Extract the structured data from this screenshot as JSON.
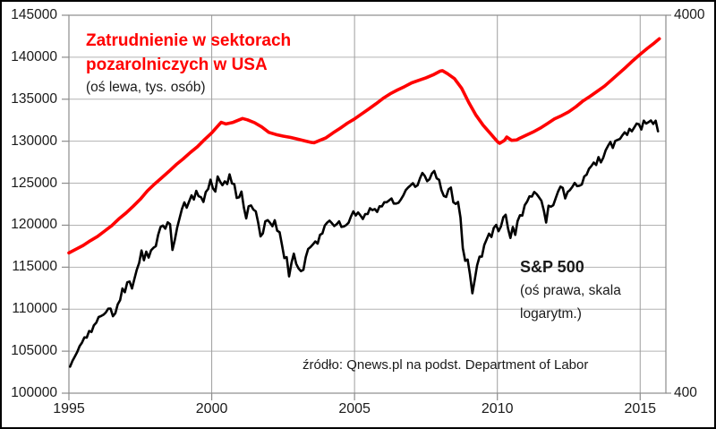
{
  "labels": {
    "series1_title_lines": [
      "Zatrudnienie w sektorach",
      "pozarolniczych w USA"
    ],
    "series1_note": "(oś lewa, tys. osób)",
    "series2_title": "S&P 500",
    "series2_note_lines": [
      "(oś prawa, skala",
      "logarytm.)"
    ],
    "source": "źródło: Qnews.pl na podst. Department of Labor"
  },
  "colors": {
    "series1": "#ff0000",
    "series2": "#000000",
    "grid": "#b3b3b3",
    "axis": "#8c8c8c",
    "text": "#1a1a1a",
    "frame_border": "#000000",
    "background": "#ffffff"
  },
  "chart_data": {
    "type": "line",
    "title": "",
    "x_axis": {
      "min": 1995,
      "max": 2015.9,
      "ticks": [
        1995,
        2000,
        2005,
        2010,
        2015
      ],
      "labels": [
        "1995",
        "2000",
        "2005",
        "2010",
        "2015"
      ],
      "grid": true
    },
    "left_axis": {
      "min": 100000,
      "max": 145000,
      "step": 5000,
      "grid": true,
      "labels": [
        "145000",
        "140000",
        "135000",
        "130000",
        "125000",
        "120000",
        "115000",
        "110000",
        "105000",
        "100000"
      ]
    },
    "right_axis": {
      "min": 400,
      "max": 4000,
      "scale": "log",
      "labels": [
        "4000",
        "400"
      ]
    },
    "series": [
      {
        "name": "Zatrudnienie w sektorach pozarolniczych w USA (tys. osób)",
        "axis": "left",
        "color": "#ff0000",
        "stroke_width": 3.6,
        "points": [
          [
            1995.0,
            116700
          ],
          [
            1995.25,
            117150
          ],
          [
            1995.5,
            117600
          ],
          [
            1995.75,
            118150
          ],
          [
            1996.0,
            118650
          ],
          [
            1996.25,
            119300
          ],
          [
            1996.5,
            119950
          ],
          [
            1996.75,
            120750
          ],
          [
            1997.0,
            121450
          ],
          [
            1997.25,
            122250
          ],
          [
            1997.5,
            123100
          ],
          [
            1997.75,
            124100
          ],
          [
            1998.0,
            124900
          ],
          [
            1998.25,
            125650
          ],
          [
            1998.5,
            126400
          ],
          [
            1998.75,
            127200
          ],
          [
            1999.0,
            127900
          ],
          [
            1999.25,
            128650
          ],
          [
            1999.5,
            129350
          ],
          [
            1999.75,
            130200
          ],
          [
            2000.0,
            131000
          ],
          [
            2000.25,
            131950
          ],
          [
            2000.33,
            132250
          ],
          [
            2000.5,
            132050
          ],
          [
            2000.75,
            132250
          ],
          [
            2001.0,
            132600
          ],
          [
            2001.08,
            132700
          ],
          [
            2001.25,
            132550
          ],
          [
            2001.5,
            132200
          ],
          [
            2001.75,
            131700
          ],
          [
            2002.0,
            131050
          ],
          [
            2002.25,
            130800
          ],
          [
            2002.5,
            130600
          ],
          [
            2002.75,
            130450
          ],
          [
            2003.0,
            130250
          ],
          [
            2003.25,
            130050
          ],
          [
            2003.5,
            129850
          ],
          [
            2003.58,
            129820
          ],
          [
            2003.75,
            130050
          ],
          [
            2004.0,
            130400
          ],
          [
            2004.25,
            131000
          ],
          [
            2004.5,
            131550
          ],
          [
            2004.75,
            132150
          ],
          [
            2005.0,
            132650
          ],
          [
            2005.25,
            133250
          ],
          [
            2005.5,
            133850
          ],
          [
            2005.75,
            134450
          ],
          [
            2006.0,
            135100
          ],
          [
            2006.25,
            135650
          ],
          [
            2006.5,
            136100
          ],
          [
            2006.75,
            136500
          ],
          [
            2007.0,
            136950
          ],
          [
            2007.25,
            137250
          ],
          [
            2007.5,
            137550
          ],
          [
            2007.75,
            137900
          ],
          [
            2008.0,
            138350
          ],
          [
            2008.08,
            138400
          ],
          [
            2008.25,
            138050
          ],
          [
            2008.5,
            137450
          ],
          [
            2008.75,
            136300
          ],
          [
            2009.0,
            134600
          ],
          [
            2009.25,
            133100
          ],
          [
            2009.5,
            131900
          ],
          [
            2009.75,
            130950
          ],
          [
            2010.0,
            129950
          ],
          [
            2010.08,
            129750
          ],
          [
            2010.25,
            130100
          ],
          [
            2010.33,
            130500
          ],
          [
            2010.5,
            130100
          ],
          [
            2010.67,
            130150
          ],
          [
            2010.75,
            130300
          ],
          [
            2011.0,
            130700
          ],
          [
            2011.25,
            131100
          ],
          [
            2011.5,
            131550
          ],
          [
            2011.75,
            132100
          ],
          [
            2012.0,
            132650
          ],
          [
            2012.25,
            133050
          ],
          [
            2012.5,
            133500
          ],
          [
            2012.75,
            134100
          ],
          [
            2013.0,
            134800
          ],
          [
            2013.25,
            135350
          ],
          [
            2013.5,
            135950
          ],
          [
            2013.75,
            136550
          ],
          [
            2014.0,
            137300
          ],
          [
            2014.25,
            138050
          ],
          [
            2014.5,
            138800
          ],
          [
            2014.75,
            139600
          ],
          [
            2015.0,
            140350
          ],
          [
            2015.25,
            141050
          ],
          [
            2015.5,
            141700
          ],
          [
            2015.67,
            142200
          ]
        ]
      },
      {
        "name": "S&P 500 (monthly close)",
        "axis": "right",
        "color": "#000000",
        "stroke_width": 2.6,
        "start_year": 1995,
        "points_per_year": 12,
        "values": [
          470,
          487,
          500,
          514,
          533,
          544,
          562,
          561,
          584,
          581,
          605,
          615,
          636,
          640,
          645,
          654,
          669,
          670,
          639,
          651,
          687,
          705,
          757,
          740,
          786,
          790,
          757,
          801,
          848,
          885,
          954,
          899,
          947,
          914,
          955,
          970,
          980,
          1049,
          1101,
          1111,
          1090,
          1133,
          1120,
          957,
          1017,
          1098,
          1163,
          1229,
          1279,
          1238,
          1286,
          1335,
          1301,
          1372,
          1328,
          1320,
          1282,
          1362,
          1388,
          1469,
          1394,
          1366,
          1498,
          1452,
          1420,
          1454,
          1430,
          1517,
          1436,
          1429,
          1314,
          1320,
          1366,
          1239,
          1160,
          1249,
          1255,
          1224,
          1211,
          1133,
          1040,
          1059,
          1139,
          1148,
          1130,
          1106,
          1147,
          1076,
          1067,
          989,
          911,
          916,
          815,
          885,
          936,
          879,
          855,
          841,
          848,
          916,
          963,
          974,
          990,
          1008,
          995,
          1050,
          1058,
          1111,
          1131,
          1144,
          1126,
          1107,
          1120,
          1140,
          1101,
          1104,
          1114,
          1130,
          1173,
          1211,
          1181,
          1203,
          1180,
          1156,
          1191,
          1191,
          1234,
          1220,
          1228,
          1207,
          1249,
          1248,
          1280,
          1280,
          1294,
          1310,
          1270,
          1270,
          1276,
          1303,
          1335,
          1377,
          1400,
          1418,
          1438,
          1406,
          1420,
          1482,
          1530,
          1503,
          1455,
          1473,
          1526,
          1549,
          1481,
          1468,
          1378,
          1330,
          1322,
          1385,
          1400,
          1280,
          1267,
          1282,
          1166,
          968,
          896,
          903,
          825,
          735,
          797,
          872,
          919,
          919,
          987,
          1020,
          1057,
          1036,
          1095,
          1115,
          1073,
          1104,
          1169,
          1186,
          1089,
          1030,
          1101,
          1049,
          1141,
          1183,
          1180,
          1257,
          1286,
          1327,
          1325,
          1363,
          1345,
          1320,
          1292,
          1218,
          1131,
          1253,
          1246,
          1257,
          1312,
          1365,
          1408,
          1397,
          1310,
          1362,
          1379,
          1406,
          1440,
          1412,
          1416,
          1426,
          1498,
          1514,
          1569,
          1597,
          1630,
          1606,
          1685,
          1632,
          1681,
          1756,
          1805,
          1848,
          1782,
          1859,
          1872,
          1883,
          1923,
          1960,
          1930,
          2003,
          1972,
          2018,
          2067,
          2058,
          1994,
          2104,
          2067,
          2085,
          2107,
          2063,
          2103,
          1972
        ]
      }
    ]
  }
}
